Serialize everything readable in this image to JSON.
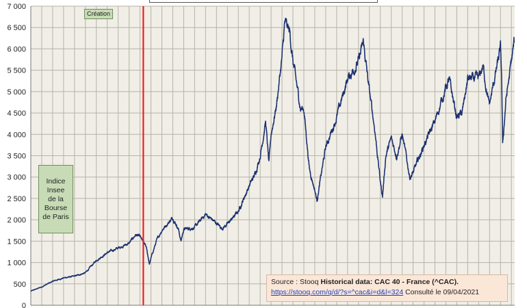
{
  "chart_data": {
    "type": "line",
    "title": "",
    "xlabel": "",
    "ylabel": "",
    "ylim": [
      0,
      7000
    ],
    "yticks": [
      0,
      500,
      1000,
      1500,
      2000,
      2500,
      3000,
      3500,
      4000,
      4500,
      5000,
      5500,
      6000,
      6500,
      7000
    ],
    "ytick_labels": [
      "0",
      "500",
      "1 000",
      "1 500",
      "2 000",
      "2 500",
      "3 000",
      "3 500",
      "4 000",
      "4 500",
      "5 000",
      "5 500",
      "6 000",
      "6 500",
      "7 000"
    ],
    "xlim": [
      1977,
      2021.3
    ],
    "grid": true,
    "series": [
      {
        "color": "#1c3170",
        "x": [
          1977,
          1978,
          1979,
          1980,
          1981,
          1982,
          1983,
          1984,
          1985,
          1986,
          1986.6,
          1987,
          1987.6,
          1987.85,
          1988,
          1988.5,
          1989,
          1990,
          1990.5,
          1990.75,
          1991,
          1992,
          1993,
          1994,
          1994.5,
          1995,
          1996,
          1997,
          1997.5,
          1998,
          1998.5,
          1998.8,
          1999,
          1999.5,
          2000,
          2000.25,
          2000.7,
          2001,
          2001.7,
          2002,
          2002.5,
          2003,
          2003.2,
          2004,
          2005,
          2006,
          2007,
          2007.45,
          2008,
          2008.5,
          2009,
          2009.2,
          2009.5,
          2010,
          2010.5,
          2011,
          2011.7,
          2012,
          2013,
          2014,
          2015,
          2015.3,
          2016,
          2016.5,
          2017,
          2018,
          2018.4,
          2018.9,
          2019,
          2020,
          2020.1,
          2020.2,
          2020.5,
          2021,
          2021.25
        ],
        "values": [
          330,
          430,
          560,
          640,
          680,
          760,
          1050,
          1230,
          1340,
          1450,
          1650,
          1600,
          1350,
          950,
          1100,
          1500,
          1760,
          2050,
          1800,
          1500,
          1780,
          1820,
          2130,
          1920,
          1800,
          1900,
          2200,
          2800,
          3050,
          3500,
          4300,
          3300,
          4000,
          4700,
          5800,
          6600,
          6400,
          5700,
          4600,
          4600,
          3200,
          2700,
          2450,
          3700,
          4400,
          5300,
          5700,
          6150,
          5000,
          4100,
          2900,
          2550,
          3500,
          3900,
          3500,
          4000,
          3000,
          3100,
          3750,
          4300,
          5100,
          5270,
          4400,
          4500,
          5300,
          5300,
          5600,
          4750,
          4700,
          6000,
          5400,
          3750,
          4800,
          5700,
          6150
        ]
      }
    ],
    "annotations": [
      {
        "text": "Création",
        "x": 1987.3
      },
      {
        "text": "Indice Insee de la Bourse de Paris"
      }
    ],
    "vline": {
      "x": 1987.3,
      "color": "#ee1c1c"
    }
  },
  "annotations": {
    "creation": "Création",
    "indice": "Indice Insee de la Bourse de Paris"
  },
  "source": {
    "prefix": "Source : Stooq ",
    "bold": "Historical data: CAC 40 - France (^CAC).",
    "link": "https://stooq.com/q/d/?s=^cac&i=d&l=324",
    "suffix": " Consulté le 09/04/2021"
  }
}
